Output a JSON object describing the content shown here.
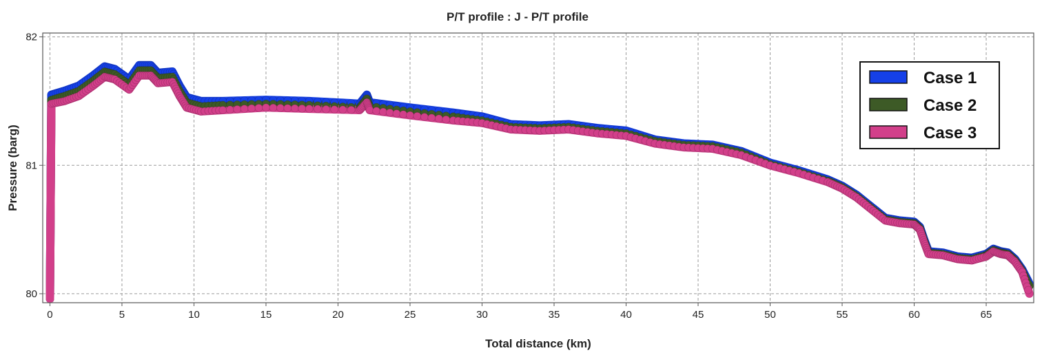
{
  "chart_data": {
    "type": "line",
    "title": "P/T profile : J - P/T profile",
    "xlabel": "Total distance (km)",
    "ylabel": "Pressure (barg)",
    "xlim": [
      -0.5,
      68.3
    ],
    "ylim": [
      79.93,
      82.03
    ],
    "x_ticks": [
      0,
      5,
      10,
      15,
      20,
      25,
      30,
      35,
      40,
      45,
      50,
      55,
      60,
      65
    ],
    "y_ticks": [
      80,
      81,
      82
    ],
    "grid": true,
    "legend_position": "top-right",
    "series": [
      {
        "name": "Case 1",
        "color": "#1540e8",
        "points": [
          [
            0,
            79.96
          ],
          [
            0.1,
            81.55
          ],
          [
            1,
            81.58
          ],
          [
            2,
            81.62
          ],
          [
            3,
            81.7
          ],
          [
            3.8,
            81.77
          ],
          [
            4.5,
            81.75
          ],
          [
            5.5,
            81.67
          ],
          [
            6.2,
            81.78
          ],
          [
            7,
            81.78
          ],
          [
            7.5,
            81.72
          ],
          [
            8.5,
            81.73
          ],
          [
            9,
            81.62
          ],
          [
            9.5,
            81.53
          ],
          [
            10.5,
            81.5
          ],
          [
            12,
            81.5
          ],
          [
            15,
            81.51
          ],
          [
            18,
            81.5
          ],
          [
            21.5,
            81.48
          ],
          [
            22,
            81.55
          ],
          [
            22.2,
            81.49
          ],
          [
            25,
            81.45
          ],
          [
            28,
            81.41
          ],
          [
            30,
            81.38
          ],
          [
            32,
            81.32
          ],
          [
            34,
            81.31
          ],
          [
            36,
            81.32
          ],
          [
            38,
            81.29
          ],
          [
            40,
            81.27
          ],
          [
            42,
            81.2
          ],
          [
            44,
            81.17
          ],
          [
            46,
            81.16
          ],
          [
            48,
            81.11
          ],
          [
            50,
            81.02
          ],
          [
            52,
            80.96
          ],
          [
            54,
            80.89
          ],
          [
            55,
            80.84
          ],
          [
            56,
            80.77
          ],
          [
            57,
            80.68
          ],
          [
            58,
            80.59
          ],
          [
            59,
            80.57
          ],
          [
            60,
            80.56
          ],
          [
            60.4,
            80.52
          ],
          [
            60.7,
            80.42
          ],
          [
            61,
            80.33
          ],
          [
            62,
            80.32
          ],
          [
            63,
            80.29
          ],
          [
            64,
            80.28
          ],
          [
            65,
            80.31
          ],
          [
            65.5,
            80.35
          ],
          [
            66,
            80.33
          ],
          [
            66.5,
            80.32
          ],
          [
            67,
            80.27
          ],
          [
            67.5,
            80.19
          ],
          [
            68,
            80.08
          ]
        ]
      },
      {
        "name": "Case 2",
        "color": "#3d5a26",
        "points": [
          [
            0,
            79.96
          ],
          [
            0.1,
            81.51
          ],
          [
            1,
            81.54
          ],
          [
            2,
            81.58
          ],
          [
            3,
            81.66
          ],
          [
            3.8,
            81.73
          ],
          [
            4.5,
            81.71
          ],
          [
            5.5,
            81.63
          ],
          [
            6.2,
            81.74
          ],
          [
            7,
            81.74
          ],
          [
            7.5,
            81.68
          ],
          [
            8.5,
            81.69
          ],
          [
            9,
            81.58
          ],
          [
            9.5,
            81.49
          ],
          [
            10.5,
            81.46
          ],
          [
            12,
            81.47
          ],
          [
            15,
            81.48
          ],
          [
            18,
            81.47
          ],
          [
            21.5,
            81.45
          ],
          [
            22,
            81.52
          ],
          [
            22.2,
            81.46
          ],
          [
            25,
            81.42
          ],
          [
            28,
            81.38
          ],
          [
            30,
            81.35
          ],
          [
            32,
            81.3
          ],
          [
            34,
            81.29
          ],
          [
            36,
            81.3
          ],
          [
            38,
            81.27
          ],
          [
            40,
            81.25
          ],
          [
            42,
            81.19
          ],
          [
            44,
            81.16
          ],
          [
            46,
            81.15
          ],
          [
            48,
            81.1
          ],
          [
            50,
            81.01
          ],
          [
            52,
            80.95
          ],
          [
            54,
            80.88
          ],
          [
            55,
            80.83
          ],
          [
            56,
            80.76
          ],
          [
            57,
            80.67
          ],
          [
            58,
            80.58
          ],
          [
            59,
            80.56
          ],
          [
            60,
            80.55
          ],
          [
            60.4,
            80.51
          ],
          [
            60.7,
            80.41
          ],
          [
            61,
            80.32
          ],
          [
            62,
            80.31
          ],
          [
            63,
            80.28
          ],
          [
            64,
            80.27
          ],
          [
            65,
            80.3
          ],
          [
            65.5,
            80.34
          ],
          [
            66,
            80.32
          ],
          [
            66.5,
            80.31
          ],
          [
            67,
            80.26
          ],
          [
            67.5,
            80.18
          ],
          [
            68,
            80.06
          ]
        ]
      },
      {
        "name": "Case 3",
        "color": "#d23f8a",
        "points": [
          [
            0,
            79.96
          ],
          [
            0.1,
            81.48
          ],
          [
            1,
            81.5
          ],
          [
            2,
            81.54
          ],
          [
            3,
            81.62
          ],
          [
            3.8,
            81.69
          ],
          [
            4.5,
            81.67
          ],
          [
            5.5,
            81.59
          ],
          [
            6.2,
            81.7
          ],
          [
            7,
            81.7
          ],
          [
            7.5,
            81.64
          ],
          [
            8.5,
            81.65
          ],
          [
            9,
            81.54
          ],
          [
            9.5,
            81.45
          ],
          [
            10.5,
            81.42
          ],
          [
            12,
            81.43
          ],
          [
            15,
            81.45
          ],
          [
            18,
            81.44
          ],
          [
            21.5,
            81.43
          ],
          [
            22,
            81.49
          ],
          [
            22.2,
            81.43
          ],
          [
            25,
            81.39
          ],
          [
            28,
            81.35
          ],
          [
            30,
            81.33
          ],
          [
            32,
            81.28
          ],
          [
            34,
            81.27
          ],
          [
            36,
            81.28
          ],
          [
            38,
            81.25
          ],
          [
            40,
            81.23
          ],
          [
            42,
            81.17
          ],
          [
            44,
            81.14
          ],
          [
            46,
            81.13
          ],
          [
            48,
            81.08
          ],
          [
            50,
            81.0
          ],
          [
            52,
            80.94
          ],
          [
            54,
            80.87
          ],
          [
            55,
            80.82
          ],
          [
            56,
            80.75
          ],
          [
            57,
            80.66
          ],
          [
            58,
            80.57
          ],
          [
            59,
            80.55
          ],
          [
            60,
            80.54
          ],
          [
            60.4,
            80.5
          ],
          [
            60.7,
            80.4
          ],
          [
            61,
            80.31
          ],
          [
            62,
            80.3
          ],
          [
            63,
            80.27
          ],
          [
            64,
            80.26
          ],
          [
            65,
            80.29
          ],
          [
            65.5,
            80.33
          ],
          [
            66,
            80.31
          ],
          [
            66.5,
            80.3
          ],
          [
            67,
            80.25
          ],
          [
            67.5,
            80.17
          ],
          [
            68,
            80.0
          ]
        ]
      }
    ]
  }
}
